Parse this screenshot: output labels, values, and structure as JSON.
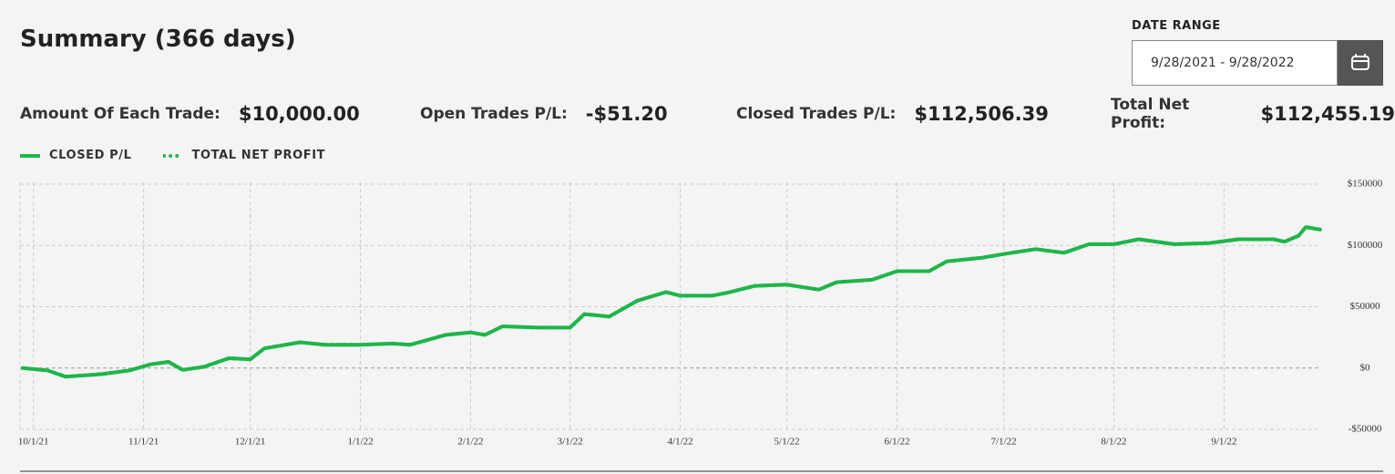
{
  "header": {
    "title": "Summary (366 days)",
    "date_range_label": "DATE RANGE",
    "date_range_value": "9/28/2021 - 9/28/2022"
  },
  "stats": [
    {
      "label": "Amount Of Each Trade:",
      "value": "$10,000.00"
    },
    {
      "label": "Open Trades P/L:",
      "value": "-$51.20"
    },
    {
      "label": "Closed Trades P/L:",
      "value": "$112,506.39"
    },
    {
      "label": "Total Net Profit:",
      "value": "$112,455.19"
    }
  ],
  "chart_data": {
    "type": "line",
    "x": [
      "2021-09-28",
      "2021-10-05",
      "2021-10-10",
      "2021-10-20",
      "2021-10-28",
      "2021-11-03",
      "2021-11-08",
      "2021-11-12",
      "2021-11-18",
      "2021-11-25",
      "2021-12-01",
      "2021-12-05",
      "2021-12-15",
      "2021-12-22",
      "2022-01-01",
      "2022-01-10",
      "2022-01-15",
      "2022-01-25",
      "2022-02-01",
      "2022-02-05",
      "2022-02-10",
      "2022-02-20",
      "2022-03-01",
      "2022-03-05",
      "2022-03-12",
      "2022-03-20",
      "2022-03-28",
      "2022-04-01",
      "2022-04-10",
      "2022-04-15",
      "2022-04-22",
      "2022-05-01",
      "2022-05-10",
      "2022-05-15",
      "2022-05-25",
      "2022-06-01",
      "2022-06-10",
      "2022-06-15",
      "2022-06-25",
      "2022-07-01",
      "2022-07-10",
      "2022-07-18",
      "2022-07-25",
      "2022-08-01",
      "2022-08-08",
      "2022-08-18",
      "2022-08-28",
      "2022-09-05",
      "2022-09-15",
      "2022-09-18",
      "2022-09-22",
      "2022-09-24",
      "2022-09-28"
    ],
    "series": [
      {
        "name": "CLOSED P/L",
        "color": "#1fb54a",
        "style": "solid",
        "values": [
          0,
          -2000,
          -7000,
          -5000,
          -2000,
          3000,
          5000,
          -1500,
          1000,
          8000,
          7000,
          16000,
          21000,
          19000,
          19000,
          20000,
          19000,
          27000,
          29000,
          27000,
          34000,
          33000,
          33000,
          44000,
          42000,
          55000,
          62000,
          59000,
          59000,
          62000,
          67000,
          68000,
          64000,
          70000,
          72000,
          79000,
          79000,
          87000,
          90000,
          93000,
          97000,
          94000,
          101000,
          101000,
          105000,
          101000,
          102000,
          105000,
          105000,
          103000,
          108000,
          115000,
          113000
        ]
      },
      {
        "name": "TOTAL NET PROFIT",
        "color": "#1fb54a",
        "style": "dotted",
        "values": [
          0,
          -2000,
          -7000,
          -5000,
          -2000,
          3000,
          5000,
          -1500,
          1000,
          8000,
          7000,
          16000,
          21000,
          19000,
          19000,
          20000,
          19000,
          27000,
          29000,
          27000,
          34000,
          33000,
          33000,
          44000,
          42000,
          55000,
          62000,
          59000,
          59000,
          62000,
          67000,
          68000,
          64000,
          70000,
          72000,
          79000,
          79000,
          87000,
          90000,
          93000,
          97000,
          94000,
          101000,
          101000,
          105000,
          101000,
          102000,
          105000,
          105000,
          103000,
          108000,
          115000,
          113000
        ]
      }
    ],
    "xlim": [
      "2021-09-28",
      "2022-10-15"
    ],
    "xticks": [
      {
        "value": "2021-10-01",
        "label": "10/1/21"
      },
      {
        "value": "2021-11-01",
        "label": "11/1/21"
      },
      {
        "value": "2021-12-01",
        "label": "12/1/21"
      },
      {
        "value": "2022-01-01",
        "label": "1/1/22"
      },
      {
        "value": "2022-02-01",
        "label": "2/1/22"
      },
      {
        "value": "2022-03-01",
        "label": "3/1/22"
      },
      {
        "value": "2022-04-01",
        "label": "4/1/22"
      },
      {
        "value": "2022-05-01",
        "label": "5/1/22"
      },
      {
        "value": "2022-06-01",
        "label": "6/1/22"
      },
      {
        "value": "2022-07-01",
        "label": "7/1/22"
      },
      {
        "value": "2022-08-01",
        "label": "8/1/22"
      },
      {
        "value": "2022-09-01",
        "label": "9/1/22"
      }
    ],
    "ylim": [
      -50000,
      150000
    ],
    "yticks": [
      {
        "value": -50000,
        "label": "-$50000"
      },
      {
        "value": 0,
        "label": "$0"
      },
      {
        "value": 50000,
        "label": "$50000"
      },
      {
        "value": 100000,
        "label": "$100000"
      },
      {
        "value": 150000,
        "label": "$150000"
      }
    ],
    "grid": true
  }
}
